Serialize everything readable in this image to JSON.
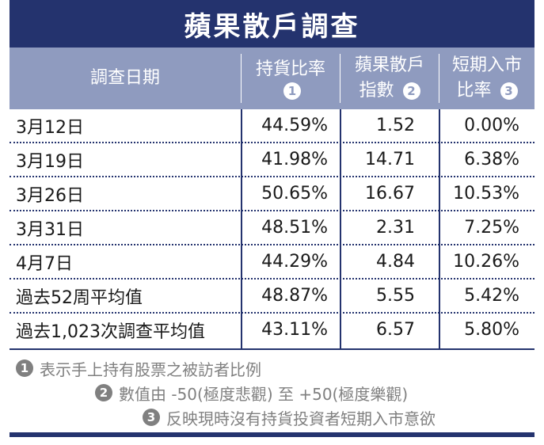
{
  "title": "蘋果散戶調查",
  "headers": {
    "date": "調查日期",
    "col1_line1": "持貨比率",
    "col1_badge": "1",
    "col2_line1": "蘋果散戶",
    "col2_line2": "指數",
    "col2_badge": "2",
    "col3_line1": "短期入市",
    "col3_line2": "比率",
    "col3_badge": "3"
  },
  "rows": [
    {
      "date": "3月12日",
      "holding": "44.59%",
      "index": "1.52",
      "entry": "0.00%"
    },
    {
      "date": "3月19日",
      "holding": "41.98%",
      "index": "14.71",
      "entry": "6.38%"
    },
    {
      "date": "3月26日",
      "holding": "50.65%",
      "index": "16.67",
      "entry": "10.53%"
    },
    {
      "date": "3月31日",
      "holding": "48.51%",
      "index": "2.31",
      "entry": "7.25%"
    },
    {
      "date": "4月7日",
      "holding": "44.29%",
      "index": "4.84",
      "entry": "10.26%"
    },
    {
      "date": "過去52周平均值",
      "holding": "48.87%",
      "index": "5.55",
      "entry": "5.42%"
    },
    {
      "date": "過去1,023次調查平均值",
      "holding": "43.11%",
      "index": "6.57",
      "entry": "5.80%"
    }
  ],
  "notes": [
    {
      "badge": "1",
      "text": "表示手上持有股票之被訪者比例"
    },
    {
      "badge": "2",
      "text": "數值由 -50(極度悲觀) 至 +50(極度樂觀)"
    },
    {
      "badge": "3",
      "text": "反映現時沒有持貨投資者短期入市意欲"
    }
  ],
  "colors": {
    "title_bg": "#24336e",
    "header_bg": "#8f9bbf",
    "note_text": "#808080"
  }
}
